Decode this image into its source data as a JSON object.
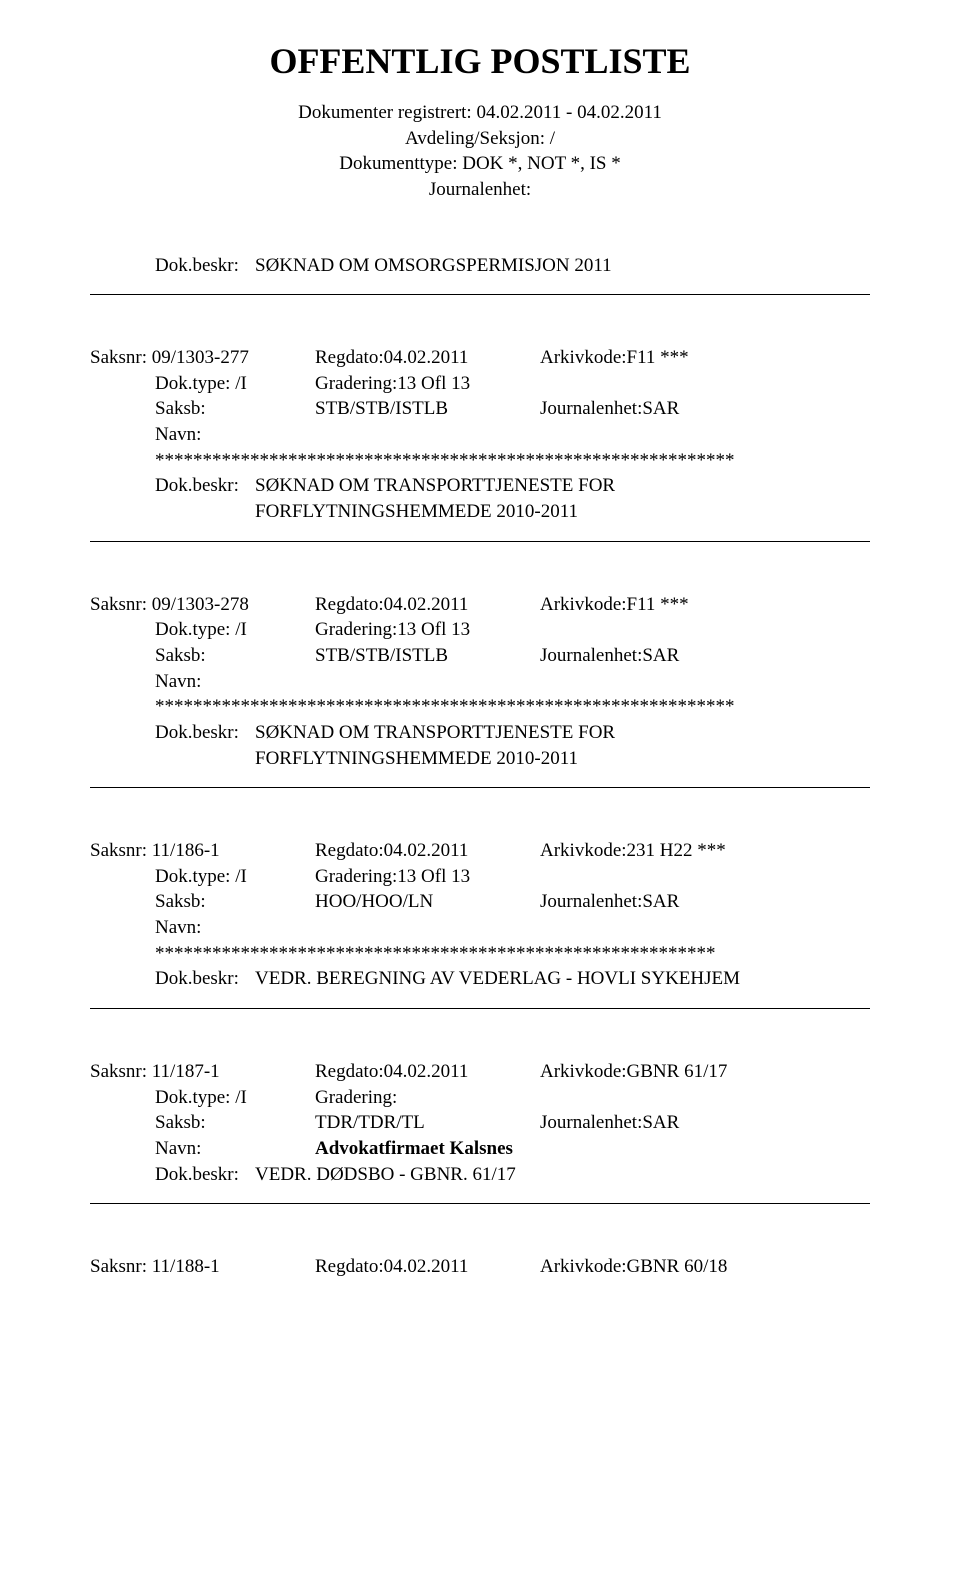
{
  "title": "OFFENTLIG POSTLISTE",
  "header": {
    "line1": "Dokumenter registrert: 04.02.2011 - 04.02.2011",
    "line2": "Avdeling/Seksjon: /",
    "line3": "Dokumenttype: DOK *, NOT *, IS *",
    "line4": "Journalenhet:"
  },
  "entries": [
    {
      "beskr_label": "Dok.beskr:",
      "beskr": "SØKNAD OM OMSORGSPERMISJON 2011",
      "beskr_multiline": false,
      "top_only": true
    },
    {
      "saksnr_label": "Saksnr: 09/1303-277",
      "regdato": "Regdato:04.02.2011",
      "arkivkode": "Arkivkode:F11 ***",
      "doktype_label": "Dok.type: /I",
      "gradering": "Gradering:13 Ofl 13",
      "saksb_label": "Saksb:",
      "saksb_value": "STB/STB/ISTLB",
      "journalenhet": "Journalenhet:SAR",
      "navn_label": "Navn:",
      "navn_value": "",
      "stars": "*************************************************************",
      "beskr_label": "Dok.beskr:",
      "beskr": "SØKNAD OM TRANSPORTTJENESTE FOR",
      "beskr_line2": "FORFLYTNINGSHEMMEDE 2010-2011",
      "beskr_multiline": true
    },
    {
      "saksnr_label": "Saksnr: 09/1303-278",
      "regdato": "Regdato:04.02.2011",
      "arkivkode": "Arkivkode:F11 ***",
      "doktype_label": "Dok.type: /I",
      "gradering": "Gradering:13 Ofl 13",
      "saksb_label": "Saksb:",
      "saksb_value": "STB/STB/ISTLB",
      "journalenhet": "Journalenhet:SAR",
      "navn_label": "Navn:",
      "navn_value": "",
      "stars": "*************************************************************",
      "beskr_label": "Dok.beskr:",
      "beskr": "SØKNAD OM TRANSPORTTJENESTE FOR",
      "beskr_line2": "FORFLYTNINGSHEMMEDE 2010-2011",
      "beskr_multiline": true
    },
    {
      "saksnr_label": "Saksnr: 11/186-1",
      "regdato": "Regdato:04.02.2011",
      "arkivkode": "Arkivkode:231 H22 ***",
      "doktype_label": "Dok.type: /I",
      "gradering": "Gradering:13 Ofl 13",
      "saksb_label": "Saksb:",
      "saksb_value": "HOO/HOO/LN",
      "journalenhet": "Journalenhet:SAR",
      "navn_label": "Navn:",
      "navn_value": "",
      "stars": "***********************************************************",
      "beskr_label": "Dok.beskr:",
      "beskr": "VEDR. BEREGNING AV VEDERLAG - HOVLI SYKEHJEM",
      "beskr_multiline": false
    },
    {
      "saksnr_label": "Saksnr: 11/187-1",
      "regdato": "Regdato:04.02.2011",
      "arkivkode": "Arkivkode:GBNR 61/17",
      "doktype_label": "Dok.type: /I",
      "gradering": "Gradering:",
      "saksb_label": "Saksb:",
      "saksb_value": "TDR/TDR/TL",
      "journalenhet": "Journalenhet:SAR",
      "navn_label": "Navn:",
      "navn_value": "Advokatfirmaet Kalsnes",
      "stars": "",
      "beskr_label": "Dok.beskr:",
      "beskr": "VEDR. DØDSBO - GBNR. 61/17",
      "beskr_multiline": false
    },
    {
      "saksnr_label": "Saksnr: 11/188-1",
      "regdato": "Regdato:04.02.2011",
      "arkivkode": "Arkivkode:GBNR 60/18",
      "bottom_only": true
    }
  ]
}
